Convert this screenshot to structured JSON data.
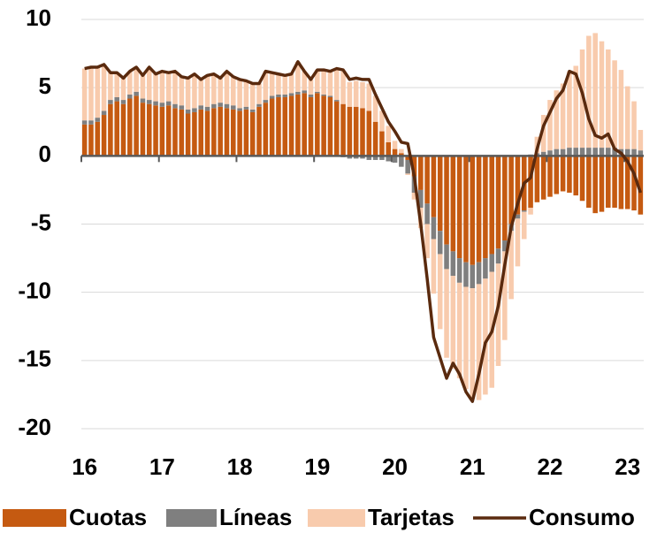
{
  "chart_data": {
    "type": "bar",
    "stacked": true,
    "categories": [
      "16",
      null,
      null,
      null,
      null,
      null,
      null,
      null,
      null,
      null,
      null,
      null,
      "17",
      null,
      null,
      null,
      null,
      null,
      null,
      null,
      null,
      null,
      null,
      null,
      "18",
      null,
      null,
      null,
      null,
      null,
      null,
      null,
      null,
      null,
      null,
      null,
      "19",
      null,
      null,
      null,
      null,
      null,
      null,
      null,
      null,
      null,
      null,
      null,
      "20",
      null,
      null,
      null,
      null,
      null,
      null,
      null,
      null,
      null,
      null,
      null,
      "21",
      null,
      null,
      null,
      null,
      null,
      null,
      null,
      null,
      null,
      null,
      null,
      "22",
      null,
      null,
      null,
      null,
      null,
      null,
      null,
      null,
      null,
      null,
      null,
      "23",
      null,
      null
    ],
    "ylim": [
      -20,
      10
    ],
    "yticks": [
      -20,
      -15,
      -10,
      -5,
      0,
      5,
      10
    ],
    "grid": true,
    "legend": "bottom",
    "series": [
      {
        "name": "Cuotas",
        "type": "bar",
        "color": "#c55a11",
        "values": [
          2.3,
          2.3,
          2.5,
          3.0,
          3.8,
          4.0,
          3.8,
          4.2,
          4.4,
          3.9,
          3.8,
          3.7,
          3.6,
          3.7,
          3.5,
          3.4,
          3.1,
          3.2,
          3.4,
          3.3,
          3.5,
          3.6,
          3.5,
          3.4,
          3.3,
          3.4,
          3.2,
          3.6,
          3.9,
          4.2,
          4.3,
          4.3,
          4.4,
          4.5,
          4.6,
          4.3,
          4.6,
          4.4,
          4.3,
          4.0,
          3.8,
          3.6,
          3.6,
          3.5,
          3.3,
          2.5,
          1.8,
          1.0,
          0.5,
          0.2,
          -0.3,
          -1.5,
          -2.5,
          -3.5,
          -4.5,
          -5.5,
          -6.5,
          -7,
          -7.5,
          -7.8,
          -8,
          -7.8,
          -7.5,
          -7.2,
          -6.8,
          -6.2,
          -5,
          -4.3,
          -4,
          -3.8,
          -3.4,
          -3.2,
          -3,
          -2.8,
          -2.6,
          -2.7,
          -2.9,
          -3.3,
          -3.8,
          -4.2,
          -4.1,
          -3.8,
          -3.8,
          -3.9,
          -3.9,
          -4.0,
          -4.3
        ]
      },
      {
        "name": "Líneas",
        "type": "bar",
        "color": "#7f7f7f",
        "values": [
          0.3,
          0.3,
          0.3,
          0.3,
          0.3,
          0.3,
          0.3,
          0.3,
          0.3,
          0.3,
          0.3,
          0.3,
          0.3,
          0.3,
          0.3,
          0.3,
          0.3,
          0.3,
          0.3,
          0.3,
          0.3,
          0.3,
          0.3,
          0.3,
          0.2,
          0.2,
          0.2,
          0.2,
          0.2,
          0.2,
          0.2,
          0.2,
          0.2,
          0.2,
          0.2,
          0.2,
          0.1,
          0.1,
          0.1,
          0.1,
          -0.1,
          -0.2,
          -0.2,
          -0.2,
          -0.3,
          -0.3,
          -0.3,
          -0.4,
          -0.5,
          -0.8,
          -1.0,
          -1.2,
          -1.3,
          -1.5,
          -1.6,
          -1.7,
          -1.8,
          -1.8,
          -1.8,
          -1.8,
          -1.7,
          -1.6,
          -1.5,
          -1.3,
          -1.1,
          -0.8,
          -0.5,
          -0.3,
          -0.1,
          0.1,
          0.2,
          0.3,
          0.4,
          0.5,
          0.5,
          0.6,
          0.6,
          0.6,
          0.6,
          0.6,
          0.6,
          0.6,
          0.6,
          0.5,
          0.5,
          0.5,
          0.4
        ]
      },
      {
        "name": "Tarjetas",
        "type": "bar",
        "color": "#f8cbad",
        "values": [
          3.8,
          3.9,
          3.7,
          3.4,
          2.0,
          1.8,
          1.6,
          1.7,
          1.8,
          1.7,
          2.4,
          2.0,
          2.3,
          2.1,
          2.4,
          2.1,
          2.3,
          2.5,
          1.9,
          2.3,
          2.2,
          1.8,
          2.4,
          2.1,
          2.1,
          1.9,
          1.9,
          1.5,
          2.1,
          1.7,
          1.5,
          1.4,
          1.4,
          2.2,
          1.4,
          1.1,
          1.6,
          1.8,
          1.8,
          2.3,
          2.4,
          1.8,
          1.9,
          1.9,
          2.0,
          1.9,
          1.5,
          1.2,
          0.6,
          0.3,
          -0.1,
          -0.5,
          -1.5,
          -2.5,
          -4,
          -5.5,
          -6.5,
          -6.8,
          -7,
          -7.5,
          -8,
          -8.5,
          -8.5,
          -8.5,
          -7.5,
          -6.5,
          -5,
          -3.5,
          -2,
          -0.5,
          1.2,
          2.7,
          3.7,
          4.3,
          4.8,
          5.6,
          6.0,
          7.2,
          8.2,
          8.4,
          7.8,
          7.2,
          6.4,
          5.8,
          4.6,
          3.5,
          1.5
        ]
      },
      {
        "name": "Consumo",
        "type": "line",
        "color": "#5a2a0e",
        "values": [
          6.4,
          6.5,
          6.5,
          6.7,
          6.1,
          6.1,
          5.7,
          6.2,
          6.5,
          5.9,
          6.5,
          6.0,
          6.2,
          6.1,
          6.2,
          5.8,
          5.7,
          6.0,
          5.6,
          5.9,
          6.0,
          5.7,
          6.2,
          5.8,
          5.6,
          5.5,
          5.3,
          5.3,
          6.2,
          6.1,
          6.0,
          5.9,
          6.0,
          6.9,
          6.2,
          5.6,
          6.3,
          6.3,
          6.2,
          6.4,
          6.3,
          5.6,
          5.7,
          5.6,
          5.6,
          4.5,
          3.5,
          2.5,
          1.8,
          1.0,
          0.9,
          -1.5,
          -5,
          -9,
          -13.3,
          -14.8,
          -16.3,
          -15.2,
          -16,
          -17.3,
          -18,
          -16,
          -13.7,
          -12.9,
          -11,
          -8,
          -5.2,
          -3.5,
          -2,
          -1.6,
          0.5,
          2.2,
          3.2,
          4.2,
          4.8,
          6.2,
          6.0,
          4.6,
          2.7,
          1.5,
          1.3,
          1.6,
          0.5,
          0.2,
          -0.4,
          -1.3,
          -2.7
        ]
      }
    ]
  }
}
